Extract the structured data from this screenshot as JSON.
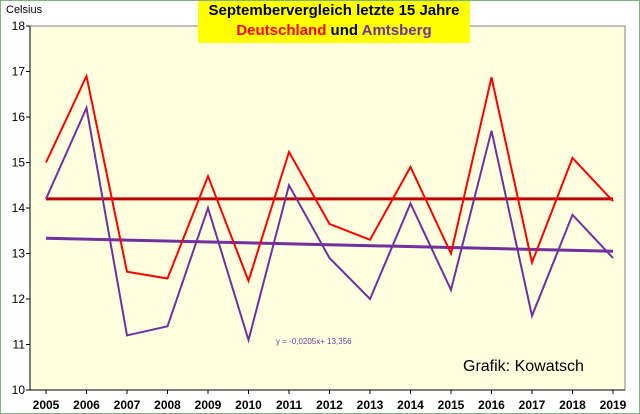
{
  "chart_data": {
    "type": "line",
    "title_line1": "Septembervergleich letzte 15 Jahre",
    "title_line2": {
      "part1": "Deutschland",
      "part2": " und ",
      "part3": "Amtsberg"
    },
    "ylabel": "Celsius",
    "ylim": [
      10,
      18
    ],
    "yticks": [
      10,
      11,
      12,
      13,
      14,
      15,
      16,
      17,
      18
    ],
    "x": [
      "2005",
      "2006",
      "2007",
      "2008",
      "2009",
      "2010",
      "2011",
      "2012",
      "2013",
      "2014",
      "2015",
      "2016",
      "2017",
      "2018",
      "2019"
    ],
    "series": [
      {
        "color": "#ff0000",
        "values": [
          15.0,
          16.9,
          12.6,
          12.45,
          14.7,
          12.4,
          15.23,
          13.65,
          13.3,
          14.9,
          13.0,
          16.87,
          12.8,
          15.1,
          14.15
        ]
      },
      {
        "color": "#7030a0",
        "values": [
          14.2,
          16.2,
          11.2,
          11.4,
          14.0,
          11.1,
          14.5,
          12.9,
          12.0,
          14.1,
          12.2,
          15.7,
          11.63,
          13.85,
          12.9
        ]
      }
    ],
    "trendlines": [
      {
        "color": "#c00000",
        "start": 14.2,
        "end": 14.2
      },
      {
        "color": "#7030a0",
        "start": 13.335,
        "end": 13.05,
        "equation": "y = -0,0205x+ 13,356"
      }
    ],
    "grid": false,
    "plot_background": "#ffffe0",
    "credit": "Grafik: Kowatsch"
  }
}
